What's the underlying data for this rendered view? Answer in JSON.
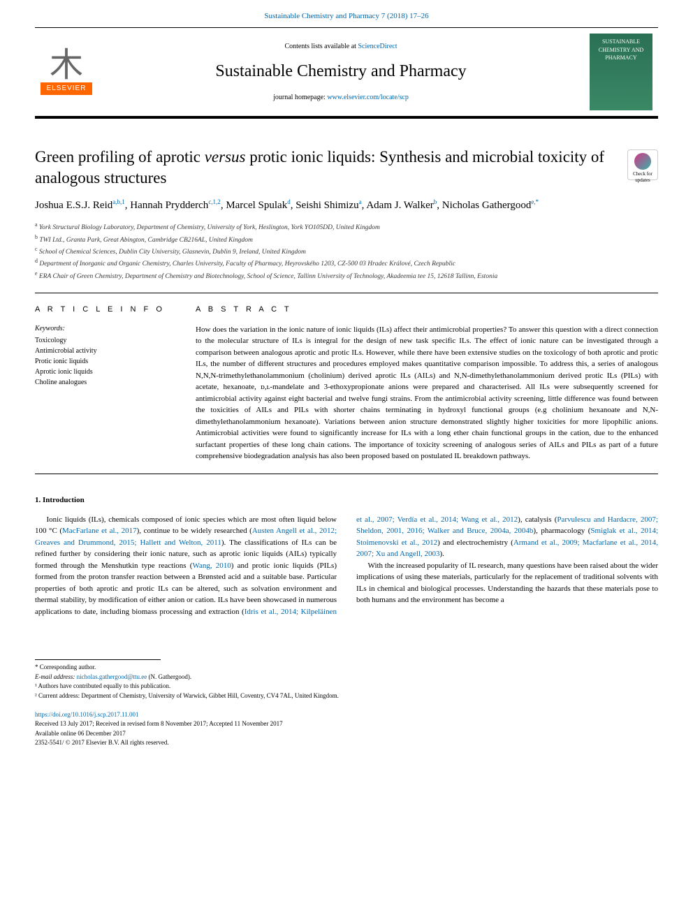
{
  "journal_ref": "Sustainable Chemistry and Pharmacy 7 (2018) 17–26",
  "header": {
    "contents_pre": "Contents lists available at ",
    "contents_link": "ScienceDirect",
    "journal_name": "Sustainable Chemistry and Pharmacy",
    "homepage_pre": "journal homepage: ",
    "homepage_link": "www.elsevier.com/locate/scp",
    "publisher": "ELSEVIER",
    "cover_text": "SUSTAINABLE CHEMISTRY AND PHARMACY"
  },
  "check_updates": "Check for updates",
  "title_pre": "Green profiling of aprotic ",
  "title_versus": "versus",
  "title_post": " protic ionic liquids: Synthesis and microbial toxicity of analogous structures",
  "authors": [
    {
      "name": "Joshua E.S.J. Reid",
      "sup": "a,b,1"
    },
    {
      "name": "Hannah Prydderch",
      "sup": "c,1,2"
    },
    {
      "name": "Marcel Spulak",
      "sup": "d"
    },
    {
      "name": "Seishi Shimizu",
      "sup": "a"
    },
    {
      "name": "Adam J. Walker",
      "sup": "b"
    },
    {
      "name": "Nicholas Gathergood",
      "sup": "e,*"
    }
  ],
  "affiliations": [
    {
      "sup": "a",
      "text": "York Structural Biology Laboratory, Department of Chemistry, University of York, Heslington, York YO105DD, United Kingdom"
    },
    {
      "sup": "b",
      "text": "TWI Ltd., Granta Park, Great Abington, Cambridge CB216AL, United Kingdom"
    },
    {
      "sup": "c",
      "text": "School of Chemical Sciences, Dublin City University, Glasnevin, Dublin 9, Ireland, United Kingdom"
    },
    {
      "sup": "d",
      "text": "Department of Inorganic and Organic Chemistry, Charles University, Faculty of Pharmacy, Heyrovského 1203, CZ-500 03 Hradec Králové, Czech Republic"
    },
    {
      "sup": "e",
      "text": "ERA Chair of Green Chemistry, Department of Chemistry and Biotechnology, School of Science, Tallinn University of Technology, Akadeemia tee 15, 12618 Tallinn, Estonia"
    }
  ],
  "article_info_label": "A R T I C L E  I N F O",
  "abstract_label": "A B S T R A C T",
  "keywords_label": "Keywords:",
  "keywords": [
    "Toxicology",
    "Antimicrobial activity",
    "Protic ionic liquids",
    "Aprotic ionic liquids",
    "Choline analogues"
  ],
  "abstract": "How does the variation in the ionic nature of ionic liquids (ILs) affect their antimicrobial properties? To answer this question with a direct connection to the molecular structure of ILs is integral for the design of new task specific ILs. The effect of ionic nature can be investigated through a comparison between analogous aprotic and protic ILs. However, while there have been extensive studies on the toxicology of both aprotic and protic ILs, the number of different structures and procedures employed makes quantitative comparison impossible. To address this, a series of analogous N,N,N-trimethylethanolammonium (cholinium) derived aprotic ILs (AILs) and N,N-dimethylethanolammonium derived protic ILs (PILs) with acetate, hexanoate, ᴅ,ʟ-mandelate and 3-ethoxypropionate anions were prepared and characterised. All ILs were subsequently screened for antimicrobial activity against eight bacterial and twelve fungi strains. From the antimicrobial activity screening, little difference was found between the toxicities of AILs and PILs with shorter chains terminating in hydroxyl functional groups (e.g cholinium hexanoate and N,N-dimethylethanolammonium hexanoate). Variations between anion structure demonstrated slightly higher toxicities for more lipophilic anions. Antimicrobial activities were found to significantly increase for ILs with a long ether chain functional groups in the cation, due to the enhanced surfactant properties of these long chain cations. The importance of toxicity screening of analogous series of AILs and PILs as part of a future comprehensive biodegradation analysis has also been proposed based on postulated IL breakdown pathways.",
  "section1_heading": "1. Introduction",
  "body_p1_a": "Ionic liquids (ILs), chemicals composed of ionic species which are most often liquid below 100 °C (",
  "body_p1_ref1": "MacFarlane et al., 2017",
  "body_p1_b": "), continue to be widely researched (",
  "body_p1_ref2": "Austen Angell et al., 2012; Greaves and Drummond, 2015; Hallett and Welton, 2011",
  "body_p1_c": "). The classifications of ILs can be refined further by considering their ionic nature, such as aprotic ionic liquids (AILs) typically formed through the Menshutkin type reactions (",
  "body_p1_ref3": "Wang, 2010",
  "body_p1_d": ") and protic ionic liquids (PILs) formed from the proton transfer reaction between a Brønsted acid and a suitable base. Particular properties of both aprotic and protic ILs can be altered, such as solvation environment and thermal stability, by modification of either anion or cation. ILs have been showcased in numerous applications to date, including biomass processing and extraction (",
  "body_p1_ref4": "Idris et al., 2014; Kilpeläinen et al., 2007; Verdía et al., 2014; Wang et al., 2012",
  "body_p1_e": "), catalysis (",
  "body_p1_ref5": "Parvulescu and Hardacre, 2007; Sheldon, 2001, 2016; Walker and Bruce, 2004a, 2004b",
  "body_p1_f": "), pharmacology (",
  "body_p1_ref6": "Smiglak et al., 2014; Stoimenovski et al., 2012",
  "body_p1_g": ") and electrochemistry (",
  "body_p1_ref7": "Armand et al., 2009; Macfarlane et al., 2014, 2007; Xu and Angell, 2003",
  "body_p1_h": ").",
  "body_p2": "With the increased popularity of IL research, many questions have been raised about the wider implications of using these materials, particularly for the replacement of traditional solvents with ILs in chemical and biological processes. Understanding the hazards that these materials pose to both humans and the environment has become a",
  "footer": {
    "corresp": "* Corresponding author.",
    "email_label": "E-mail address: ",
    "email": "nicholas.gathergood@ttu.ee",
    "email_attr": " (N. Gathergood).",
    "note1": "¹ Authors have contributed equally to this publication.",
    "note2": "² Current address: Department of Chemistry, University of Warwick, Gibbet Hill, Coventry, CV4 7AL, United Kingdom.",
    "doi": "https://doi.org/10.1016/j.scp.2017.11.001",
    "received": "Received 13 July 2017; Received in revised form 8 November 2017; Accepted 11 November 2017",
    "available": "Available online 06 December 2017",
    "copyright": "2352-5541/ © 2017 Elsevier B.V. All rights reserved."
  },
  "colors": {
    "link": "#0066aa",
    "publisher_orange": "#ff6600",
    "cover_bg": "#2a7055"
  }
}
